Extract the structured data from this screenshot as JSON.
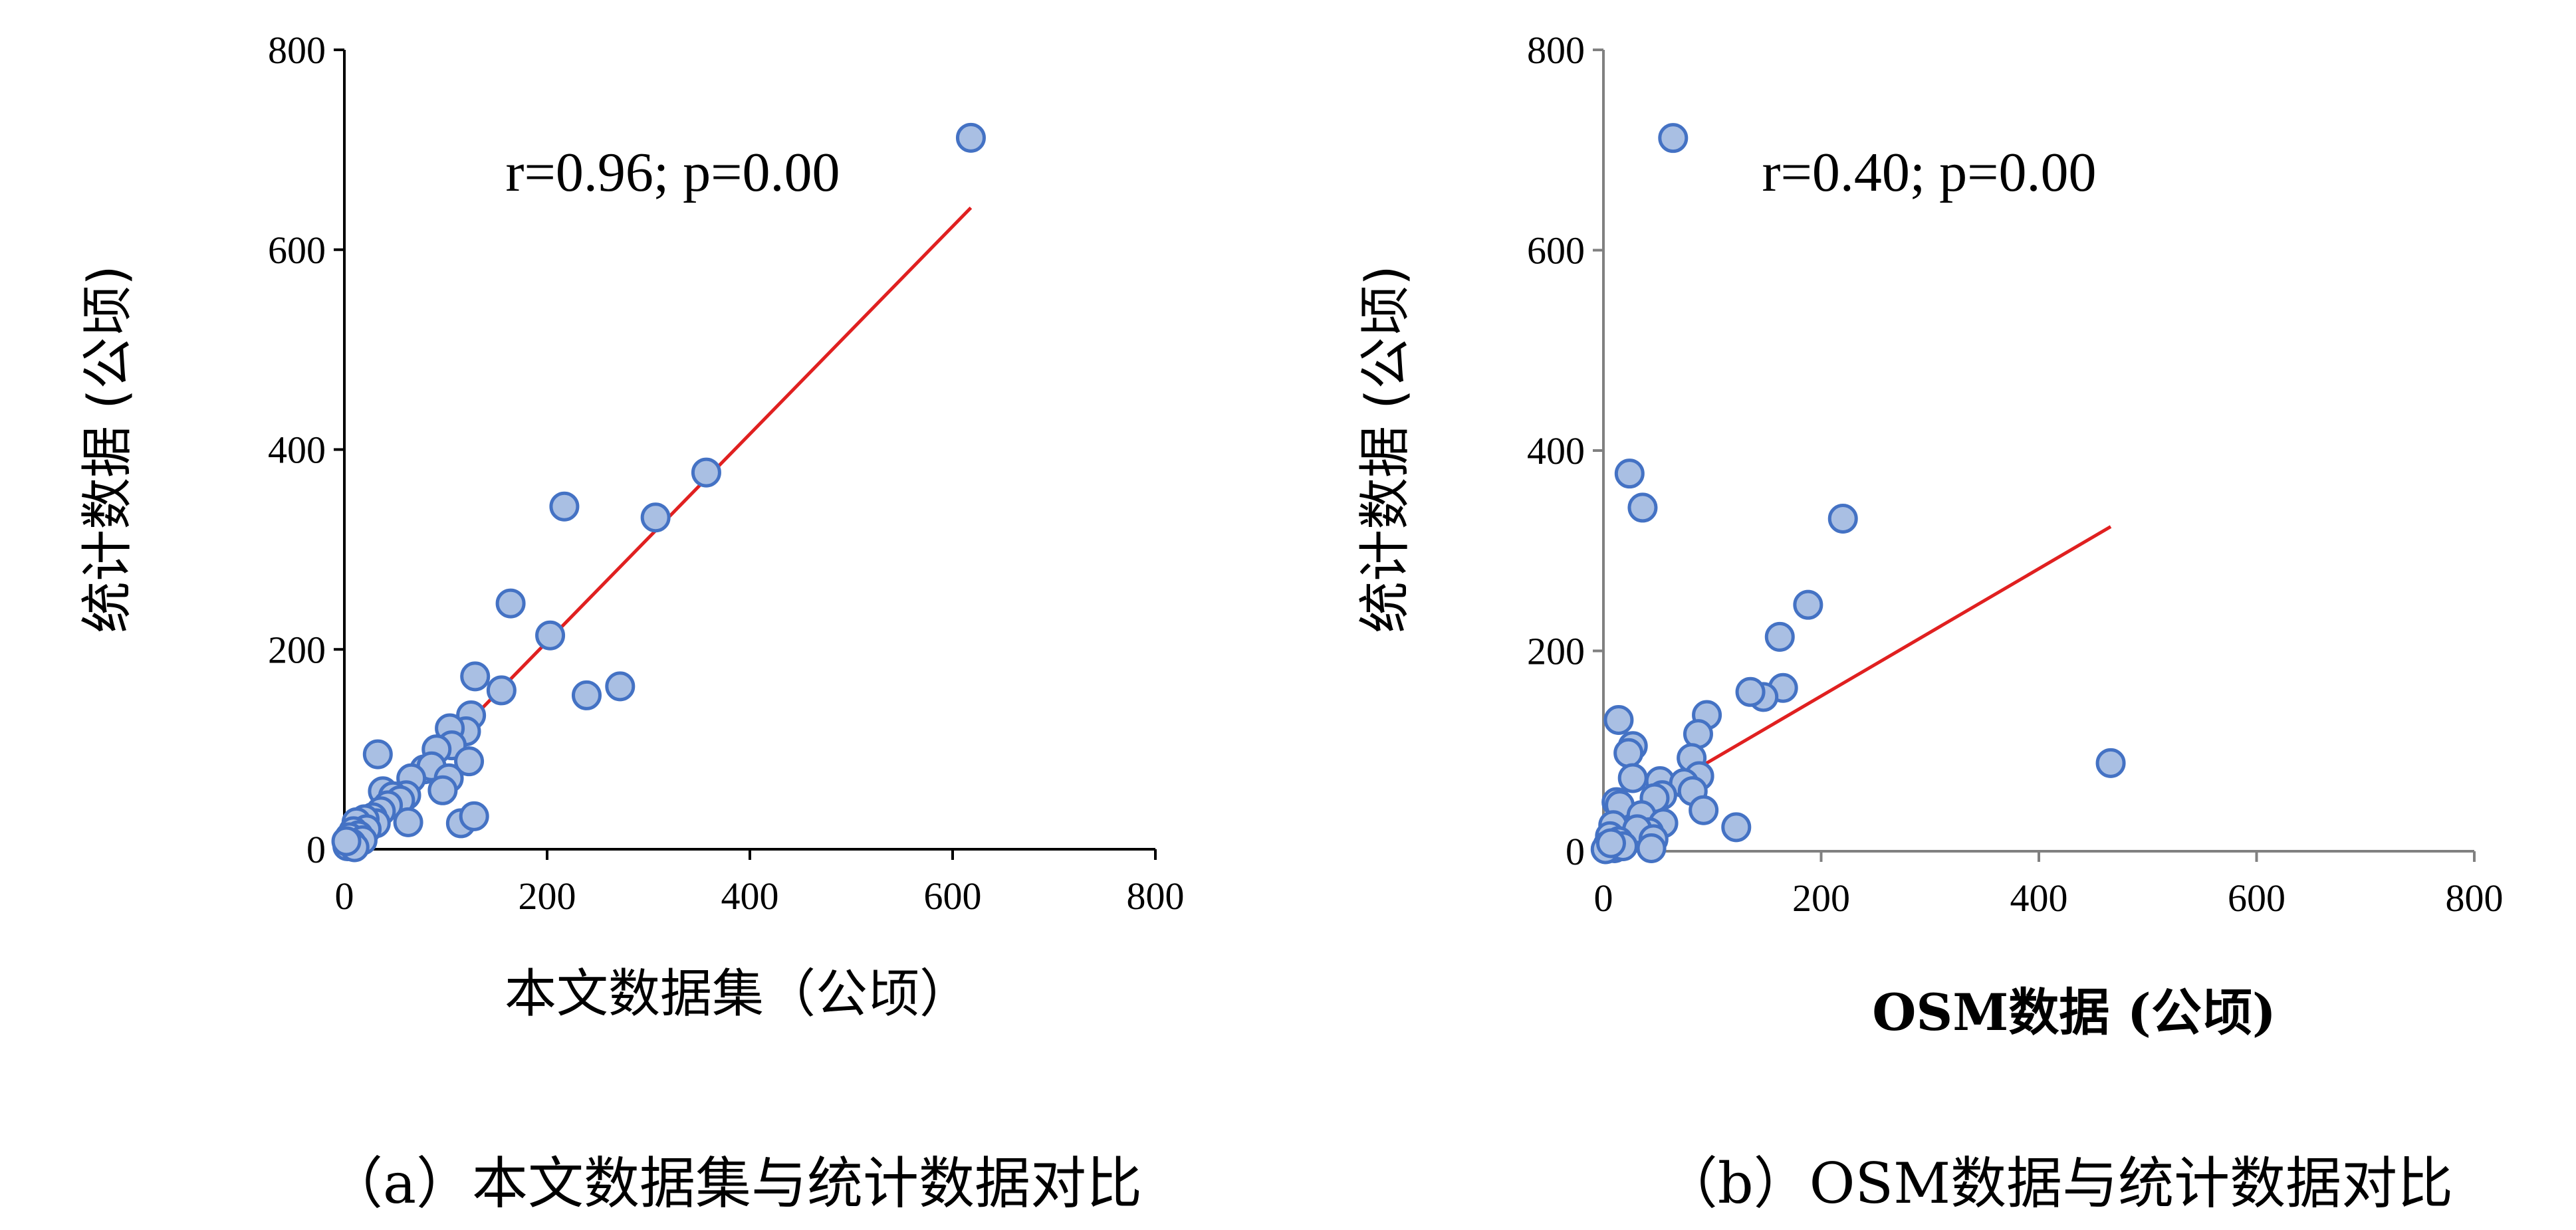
{
  "chart_data": [
    {
      "type": "scatter",
      "xlabel": "本文数据集（公顷）",
      "ylabel": "统计数据 (公顷)",
      "xlim": [
        0,
        800
      ],
      "ylim": [
        0,
        800
      ],
      "xticks": [
        "0",
        "200",
        "400",
        "600",
        "800"
      ],
      "yticks": [
        "0",
        "200",
        "400",
        "600",
        "800"
      ],
      "annotation": "r=0.96; p=0.00",
      "caption": "（a）本文数据集与统计数据对比",
      "grid": false,
      "points": [
        {
          "x": 618,
          "y": 712
        },
        {
          "x": 357,
          "y": 377
        },
        {
          "x": 307,
          "y": 332
        },
        {
          "x": 217,
          "y": 343
        },
        {
          "x": 164,
          "y": 246
        },
        {
          "x": 203,
          "y": 214
        },
        {
          "x": 272,
          "y": 163
        },
        {
          "x": 239,
          "y": 154
        },
        {
          "x": 155,
          "y": 159
        },
        {
          "x": 129,
          "y": 173
        },
        {
          "x": 125,
          "y": 134
        },
        {
          "x": 120,
          "y": 118
        },
        {
          "x": 104,
          "y": 121
        },
        {
          "x": 106,
          "y": 104
        },
        {
          "x": 91,
          "y": 100
        },
        {
          "x": 123,
          "y": 88
        },
        {
          "x": 79,
          "y": 80
        },
        {
          "x": 86,
          "y": 83
        },
        {
          "x": 66,
          "y": 71
        },
        {
          "x": 103,
          "y": 71
        },
        {
          "x": 97,
          "y": 59
        },
        {
          "x": 61,
          "y": 54
        },
        {
          "x": 33,
          "y": 95
        },
        {
          "x": 38,
          "y": 58
        },
        {
          "x": 48,
          "y": 53
        },
        {
          "x": 55,
          "y": 49
        },
        {
          "x": 43,
          "y": 44
        },
        {
          "x": 63,
          "y": 27
        },
        {
          "x": 115,
          "y": 26
        },
        {
          "x": 128,
          "y": 33
        },
        {
          "x": 36,
          "y": 38
        },
        {
          "x": 28,
          "y": 32
        },
        {
          "x": 31,
          "y": 26
        },
        {
          "x": 20,
          "y": 30
        },
        {
          "x": 12,
          "y": 27
        },
        {
          "x": 22,
          "y": 20
        },
        {
          "x": 9,
          "y": 18
        },
        {
          "x": 14,
          "y": 14
        },
        {
          "x": 5,
          "y": 12
        },
        {
          "x": 18,
          "y": 9
        },
        {
          "x": 7,
          "y": 6
        },
        {
          "x": 3,
          "y": 3
        },
        {
          "x": 10,
          "y": 2
        },
        {
          "x": 2,
          "y": 8
        }
      ],
      "fit_line": {
        "x": [
          2,
          618
        ],
        "y": [
          2,
          642
        ]
      },
      "colors": {
        "marker_fill": "#a9bfe3",
        "marker_edge": "#4472c4",
        "fit": "#e02020",
        "axis": "#000000"
      }
    },
    {
      "type": "scatter",
      "xlabel": "OSM数据 (公顷)",
      "ylabel": "统计数据 (公顷)",
      "xlim": [
        0,
        800
      ],
      "ylim": [
        0,
        800
      ],
      "xticks": [
        "0",
        "200",
        "400",
        "600",
        "800"
      ],
      "yticks": [
        "0",
        "200",
        "400",
        "600",
        "800"
      ],
      "annotation": "r=0.40; p=0.00",
      "caption": "（b）OSM数据与统计数据对比",
      "grid": false,
      "points": [
        {
          "x": 64,
          "y": 712
        },
        {
          "x": 24,
          "y": 377
        },
        {
          "x": 36,
          "y": 343
        },
        {
          "x": 220,
          "y": 332
        },
        {
          "x": 188,
          "y": 246
        },
        {
          "x": 162,
          "y": 214
        },
        {
          "x": 165,
          "y": 163
        },
        {
          "x": 147,
          "y": 154
        },
        {
          "x": 135,
          "y": 159
        },
        {
          "x": 95,
          "y": 136
        },
        {
          "x": 14,
          "y": 131
        },
        {
          "x": 87,
          "y": 117
        },
        {
          "x": 27,
          "y": 105
        },
        {
          "x": 23,
          "y": 98
        },
        {
          "x": 81,
          "y": 93
        },
        {
          "x": 88,
          "y": 75
        },
        {
          "x": 27,
          "y": 73
        },
        {
          "x": 52,
          "y": 70
        },
        {
          "x": 74,
          "y": 68
        },
        {
          "x": 82,
          "y": 60
        },
        {
          "x": 54,
          "y": 56
        },
        {
          "x": 47,
          "y": 53
        },
        {
          "x": 12,
          "y": 49
        },
        {
          "x": 92,
          "y": 41
        },
        {
          "x": 15,
          "y": 46
        },
        {
          "x": 35,
          "y": 36
        },
        {
          "x": 55,
          "y": 28
        },
        {
          "x": 122,
          "y": 24
        },
        {
          "x": 466,
          "y": 88
        },
        {
          "x": 42,
          "y": 19
        },
        {
          "x": 23,
          "y": 18
        },
        {
          "x": 9,
          "y": 26
        },
        {
          "x": 6,
          "y": 15
        },
        {
          "x": 31,
          "y": 22
        },
        {
          "x": 14,
          "y": 10
        },
        {
          "x": 46,
          "y": 12
        },
        {
          "x": 4,
          "y": 6
        },
        {
          "x": 10,
          "y": 3
        },
        {
          "x": 2,
          "y": 2
        },
        {
          "x": 44,
          "y": 3
        },
        {
          "x": 18,
          "y": 5
        },
        {
          "x": 7,
          "y": 8
        }
      ],
      "fit_line": {
        "x": [
          2,
          466
        ],
        "y": [
          29,
          324
        ]
      },
      "colors": {
        "marker_fill": "#a9bfe3",
        "marker_edge": "#4472c4",
        "fit": "#e02020",
        "axis": "#808080"
      }
    }
  ]
}
